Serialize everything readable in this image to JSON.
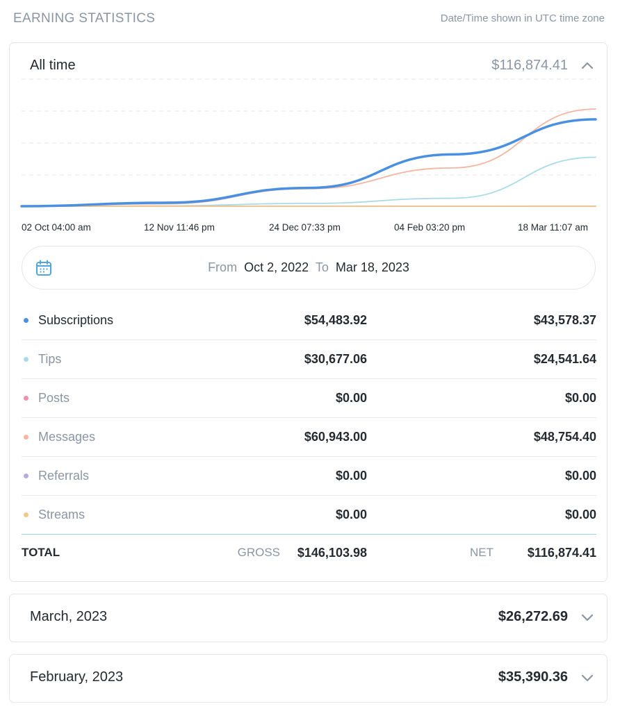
{
  "header": {
    "title": "EARNING STATISTICS",
    "note": "Date/Time shown in UTC time zone"
  },
  "summary": {
    "period_label": "All time",
    "amount": "$116,874.41",
    "collapse_icon": "chevron-up-icon"
  },
  "chart_data": {
    "type": "line",
    "x": [
      "02 Oct 04:00 am",
      "12 Nov 11:46 pm",
      "24 Dec 07:33 pm",
      "04 Feb 03:20 pm",
      "18 Mar 11:07 am"
    ],
    "ylim": [
      0,
      60943
    ],
    "grid": true,
    "series": [
      {
        "name": "Subscriptions",
        "color": "#4a90e2",
        "values": [
          0,
          2200,
          11500,
          32500,
          54483.92
        ]
      },
      {
        "name": "Tips",
        "color": "#a8dbea",
        "values": [
          0,
          200,
          1800,
          5000,
          30677.06
        ]
      },
      {
        "name": "Posts",
        "color": "#f08eb0",
        "values": [
          0,
          0,
          0,
          0,
          0
        ]
      },
      {
        "name": "Messages",
        "color": "#f5b5a0",
        "values": [
          0,
          1500,
          11000,
          24000,
          60943.0
        ]
      },
      {
        "name": "Referrals",
        "color": "#b9a8e0",
        "values": [
          0,
          0,
          0,
          0,
          0
        ]
      },
      {
        "name": "Streams",
        "color": "#f5c78a",
        "values": [
          0,
          0,
          0,
          0,
          0
        ]
      }
    ]
  },
  "date_range": {
    "calendar_icon": "calendar-icon",
    "from_label": "From",
    "from_value": "Oct 2, 2022",
    "to_label": "To",
    "to_value": "Mar 18, 2023"
  },
  "breakdown": [
    {
      "name": "Subscriptions",
      "color": "#4a90e2",
      "gross": "$54,483.92",
      "net": "$43,578.37"
    },
    {
      "name": "Tips",
      "color": "#a8dbea",
      "gross": "$30,677.06",
      "net": "$24,541.64"
    },
    {
      "name": "Posts",
      "color": "#f08eb0",
      "gross": "$0.00",
      "net": "$0.00"
    },
    {
      "name": "Messages",
      "color": "#f5b5a0",
      "gross": "$60,943.00",
      "net": "$48,754.40"
    },
    {
      "name": "Referrals",
      "color": "#b9a8e0",
      "gross": "$0.00",
      "net": "$0.00"
    },
    {
      "name": "Streams",
      "color": "#f5c78a",
      "gross": "$0.00",
      "net": "$0.00"
    }
  ],
  "total": {
    "label": "TOTAL",
    "gross_label": "GROSS",
    "gross_value": "$146,103.98",
    "net_label": "NET",
    "net_value": "$116,874.41"
  },
  "months": [
    {
      "label": "March, 2023",
      "amount": "$26,272.69"
    },
    {
      "label": "February, 2023",
      "amount": "$35,390.36"
    }
  ]
}
